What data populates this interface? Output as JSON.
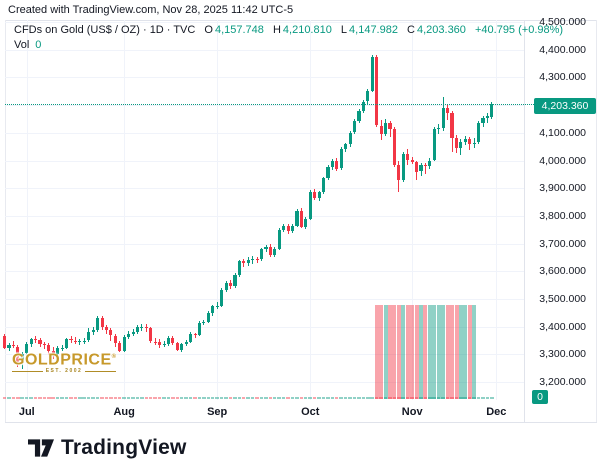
{
  "attribution": "Created with TradingView.com, Nov 28, 2025 11:42 UTC-5",
  "header": {
    "symbol": "CFDs on Gold (US$ / OZ) · 1D · TVC",
    "o_label": "O",
    "o_value": "4,157.748",
    "h_label": "H",
    "h_value": "4,210.810",
    "l_label": "L",
    "l_value": "4,147.982",
    "c_label": "C",
    "c_value": "4,203.360",
    "change": "+40.795 (+0.98%)",
    "vol_label": "Vol",
    "vol_value": "0"
  },
  "watermark": {
    "title": "GOLDPRICE",
    "reg": "®",
    "subtitle": "EST. 2002"
  },
  "axis": {
    "price_tag": "4,203.360",
    "vol_zero_tag": "0"
  },
  "footer": {
    "brand": "TradingView"
  },
  "colors": {
    "up": "#089981",
    "down": "#f23645",
    "vol_up": "rgba(8,153,129,0.45)",
    "vol_down": "rgba(242,54,69,0.45)",
    "grid": "#f0f3fa",
    "text": "#131722",
    "accent_label_bg": "#089981"
  },
  "chart_data": {
    "type": "candlestick",
    "title": "CFDs on Gold (US$ / OZ)",
    "interval": "1D",
    "exchange": "TVC",
    "last_bar": {
      "open": 4157.748,
      "high": 4210.81,
      "low": 4147.982,
      "close": 4203.36,
      "change": "+40.795",
      "change_pct": "+0.98%"
    },
    "current_price": 4203.36,
    "y_axis": {
      "range": [
        3200,
        4500
      ],
      "ticks": [
        {
          "value": 4500,
          "label": "4,500.000"
        },
        {
          "value": 4400,
          "label": "4,400.000"
        },
        {
          "value": 4300,
          "label": "4,300.000"
        },
        {
          "value": 4100,
          "label": "4,100.000"
        },
        {
          "value": 4000,
          "label": "4,000.000"
        },
        {
          "value": 3900,
          "label": "3,900.000"
        },
        {
          "value": 3800,
          "label": "3,800.000"
        },
        {
          "value": 3700,
          "label": "3,700.000"
        },
        {
          "value": 3600,
          "label": "3,600.000"
        },
        {
          "value": 3500,
          "label": "3,500.000"
        },
        {
          "value": 3400,
          "label": "3,400.000"
        },
        {
          "value": 3300,
          "label": "3,300.000"
        },
        {
          "value": 3200,
          "label": "3,200.000"
        }
      ],
      "gridline_only_values": [
        4200
      ]
    },
    "x_axis": {
      "months": [
        {
          "label": "Jul",
          "candle_index": 5
        },
        {
          "label": "Aug",
          "candle_index": 27
        },
        {
          "label": "Sep",
          "candle_index": 48
        },
        {
          "label": "Oct",
          "candle_index": 69
        },
        {
          "label": "Nov",
          "candle_index": 92
        },
        {
          "label": "Dec",
          "candle_index": 111
        }
      ]
    },
    "volume": {
      "legend_value": 0,
      "equal_height_block": {
        "from_index": 84,
        "to_index": 106
      }
    },
    "candles_ohlc": [
      [
        3368,
        3375,
        3318,
        3324
      ],
      [
        3324,
        3340,
        3310,
        3332
      ],
      [
        3332,
        3350,
        3322,
        3328
      ],
      [
        3328,
        3332,
        3255,
        3274
      ],
      [
        3274,
        3310,
        3246,
        3303
      ],
      [
        3303,
        3345,
        3295,
        3338
      ],
      [
        3338,
        3360,
        3328,
        3357
      ],
      [
        3357,
        3365,
        3340,
        3352
      ],
      [
        3352,
        3358,
        3325,
        3336
      ],
      [
        3336,
        3345,
        3320,
        3333
      ],
      [
        3333,
        3340,
        3296,
        3311
      ],
      [
        3311,
        3325,
        3282,
        3301
      ],
      [
        3301,
        3330,
        3298,
        3323
      ],
      [
        3323,
        3335,
        3310,
        3324
      ],
      [
        3324,
        3360,
        3318,
        3356
      ],
      [
        3356,
        3366,
        3340,
        3350
      ],
      [
        3350,
        3362,
        3338,
        3345
      ],
      [
        3345,
        3355,
        3332,
        3347
      ],
      [
        3347,
        3360,
        3336,
        3350
      ],
      [
        3350,
        3395,
        3345,
        3381
      ],
      [
        3381,
        3398,
        3368,
        3387
      ],
      [
        3387,
        3439,
        3382,
        3430
      ],
      [
        3430,
        3438,
        3387,
        3398
      ],
      [
        3398,
        3405,
        3373,
        3388
      ],
      [
        3388,
        3395,
        3350,
        3368
      ],
      [
        3368,
        3375,
        3325,
        3340
      ],
      [
        3340,
        3348,
        3310,
        3313
      ],
      [
        3313,
        3370,
        3308,
        3363
      ],
      [
        3363,
        3385,
        3355,
        3373
      ],
      [
        3373,
        3390,
        3365,
        3380
      ],
      [
        3380,
        3405,
        3372,
        3397
      ],
      [
        3397,
        3410,
        3385,
        3399
      ],
      [
        3399,
        3408,
        3380,
        3396
      ],
      [
        3396,
        3400,
        3340,
        3346
      ],
      [
        3346,
        3358,
        3332,
        3344
      ],
      [
        3344,
        3355,
        3322,
        3335
      ],
      [
        3335,
        3348,
        3325,
        3336
      ],
      [
        3336,
        3368,
        3330,
        3359
      ],
      [
        3359,
        3365,
        3332,
        3340
      ],
      [
        3340,
        3345,
        3311,
        3316
      ],
      [
        3316,
        3342,
        3310,
        3338
      ],
      [
        3338,
        3352,
        3328,
        3345
      ],
      [
        3345,
        3380,
        3340,
        3373
      ],
      [
        3373,
        3378,
        3358,
        3370
      ],
      [
        3370,
        3420,
        3365,
        3414
      ],
      [
        3414,
        3425,
        3405,
        3418
      ],
      [
        3418,
        3455,
        3412,
        3448
      ],
      [
        3448,
        3480,
        3440,
        3473
      ],
      [
        3473,
        3490,
        3465,
        3476
      ],
      [
        3476,
        3540,
        3470,
        3533
      ],
      [
        3533,
        3565,
        3525,
        3559
      ],
      [
        3559,
        3570,
        3535,
        3545
      ],
      [
        3545,
        3595,
        3540,
        3587
      ],
      [
        3587,
        3640,
        3580,
        3636
      ],
      [
        3636,
        3645,
        3615,
        3628
      ],
      [
        3628,
        3650,
        3620,
        3641
      ],
      [
        3641,
        3655,
        3628,
        3644
      ],
      [
        3644,
        3652,
        3630,
        3643
      ],
      [
        3643,
        3685,
        3638,
        3679
      ],
      [
        3679,
        3695,
        3670,
        3689
      ],
      [
        3689,
        3698,
        3650,
        3659
      ],
      [
        3659,
        3688,
        3652,
        3681
      ],
      [
        3681,
        3755,
        3675,
        3749
      ],
      [
        3749,
        3770,
        3740,
        3765
      ],
      [
        3765,
        3772,
        3735,
        3744
      ],
      [
        3744,
        3770,
        3738,
        3765
      ],
      [
        3765,
        3825,
        3758,
        3819
      ],
      [
        3819,
        3828,
        3755,
        3760
      ],
      [
        3760,
        3795,
        3752,
        3790
      ],
      [
        3790,
        3895,
        3785,
        3887
      ],
      [
        3887,
        3896,
        3858,
        3866
      ],
      [
        3866,
        3890,
        3855,
        3886
      ],
      [
        3886,
        3940,
        3880,
        3936
      ],
      [
        3936,
        3985,
        3930,
        3977
      ],
      [
        3977,
        4005,
        3965,
        4000
      ],
      [
        4000,
        4010,
        3960,
        3971
      ],
      [
        3971,
        4048,
        3965,
        4042
      ],
      [
        4042,
        4065,
        4030,
        4058
      ],
      [
        4058,
        4108,
        4050,
        4101
      ],
      [
        4101,
        4150,
        4095,
        4143
      ],
      [
        4143,
        4185,
        4135,
        4179
      ],
      [
        4179,
        4220,
        4170,
        4213
      ],
      [
        4213,
        4260,
        4205,
        4252
      ],
      [
        4252,
        4380,
        4248,
        4372
      ],
      [
        4372,
        4381,
        4120,
        4126
      ],
      [
        4126,
        4145,
        4075,
        4094
      ],
      [
        4094,
        4150,
        4088,
        4136
      ],
      [
        4136,
        4142,
        4085,
        4113
      ],
      [
        4113,
        4120,
        3975,
        3985
      ],
      [
        3985,
        3998,
        3886,
        3930
      ],
      [
        3930,
        4032,
        3921,
        4025
      ],
      [
        4025,
        4042,
        3983,
        4002
      ],
      [
        4002,
        4014,
        3988,
        3996
      ],
      [
        3996,
        4000,
        3931,
        3960
      ],
      [
        3960,
        3990,
        3945,
        3985
      ],
      [
        3985,
        3992,
        3952,
        3980
      ],
      [
        3980,
        4008,
        3970,
        4000
      ],
      [
        4000,
        4122,
        3998,
        4115
      ],
      [
        4115,
        4132,
        4094,
        4116
      ],
      [
        4116,
        4230,
        4108,
        4191
      ],
      [
        4191,
        4202,
        4148,
        4170
      ],
      [
        4170,
        4178,
        4032,
        4080
      ],
      [
        4080,
        4092,
        4028,
        4046
      ],
      [
        4046,
        4076,
        4020,
        4068
      ],
      [
        4068,
        4090,
        4056,
        4077
      ],
      [
        4077,
        4085,
        4038,
        4060
      ],
      [
        4060,
        4082,
        4044,
        4065
      ],
      [
        4065,
        4142,
        4058,
        4135
      ],
      [
        4135,
        4162,
        4120,
        4152
      ],
      [
        4152,
        4170,
        4136,
        4160
      ],
      [
        4157.748,
        4210.81,
        4147.982,
        4203.36
      ]
    ]
  }
}
